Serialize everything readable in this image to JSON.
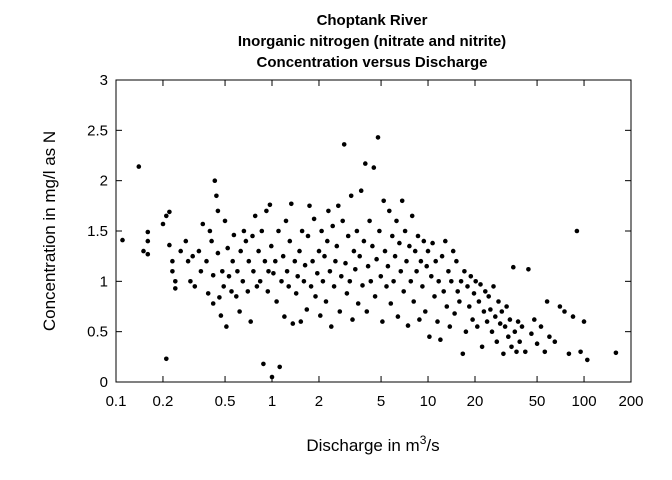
{
  "chart_data": {
    "type": "scatter",
    "title_lines": [
      "Choptank River",
      "Inorganic nitrogen (nitrate and nitrite)",
      "Concentration versus Discharge"
    ],
    "xlabel": {
      "prefix": "Discharge in m",
      "superscript": "3",
      "suffix": "/s"
    },
    "ylabel": "Concentration in mg/l as N",
    "x_scale": "log",
    "xlim": [
      0.1,
      200
    ],
    "ylim": [
      0,
      3
    ],
    "x_ticks": [
      {
        "value": 0.1,
        "label": "0.1"
      },
      {
        "value": 0.2,
        "label": "0.2"
      },
      {
        "value": 0.5,
        "label": "0.5"
      },
      {
        "value": 1,
        "label": "1"
      },
      {
        "value": 2,
        "label": "2"
      },
      {
        "value": 5,
        "label": "5"
      },
      {
        "value": 10,
        "label": "10"
      },
      {
        "value": 20,
        "label": "20"
      },
      {
        "value": 50,
        "label": "50"
      },
      {
        "value": 100,
        "label": "100"
      },
      {
        "value": 200,
        "label": "200"
      }
    ],
    "y_ticks": [
      {
        "value": 0,
        "label": "0"
      },
      {
        "value": 0.5,
        "label": "0.5"
      },
      {
        "value": 1,
        "label": "1"
      },
      {
        "value": 1.5,
        "label": "1.5"
      },
      {
        "value": 2,
        "label": "2"
      },
      {
        "value": 2.5,
        "label": "2.5"
      },
      {
        "value": 3,
        "label": "3"
      }
    ],
    "grid": false,
    "marker_color": "#000000",
    "points": [
      [
        0.11,
        1.41
      ],
      [
        0.14,
        2.14
      ],
      [
        0.15,
        1.3
      ],
      [
        0.16,
        1.27
      ],
      [
        0.16,
        1.4
      ],
      [
        0.16,
        1.49
      ],
      [
        0.2,
        1.57
      ],
      [
        0.21,
        1.65
      ],
      [
        0.21,
        0.23
      ],
      [
        0.22,
        1.36
      ],
      [
        0.22,
        1.69
      ],
      [
        0.23,
        1.2
      ],
      [
        0.23,
        1.1
      ],
      [
        0.24,
        1.0
      ],
      [
        0.24,
        0.93
      ],
      [
        0.26,
        1.3
      ],
      [
        0.28,
        1.4
      ],
      [
        0.29,
        1.2
      ],
      [
        0.3,
        1.0
      ],
      [
        0.31,
        1.25
      ],
      [
        0.32,
        0.95
      ],
      [
        0.34,
        1.3
      ],
      [
        0.35,
        1.1
      ],
      [
        0.36,
        1.57
      ],
      [
        0.38,
        1.2
      ],
      [
        0.39,
        0.88
      ],
      [
        0.4,
        1.5
      ],
      [
        0.41,
        1.4
      ],
      [
        0.42,
        0.78
      ],
      [
        0.42,
        1.06
      ],
      [
        0.43,
        2.0
      ],
      [
        0.44,
        1.85
      ],
      [
        0.45,
        1.7
      ],
      [
        0.45,
        1.28
      ],
      [
        0.46,
        0.84
      ],
      [
        0.47,
        0.66
      ],
      [
        0.48,
        1.1
      ],
      [
        0.49,
        0.95
      ],
      [
        0.5,
        1.6
      ],
      [
        0.51,
        0.55
      ],
      [
        0.52,
        1.33
      ],
      [
        0.53,
        1.05
      ],
      [
        0.55,
        0.9
      ],
      [
        0.56,
        1.2
      ],
      [
        0.57,
        1.46
      ],
      [
        0.59,
        0.85
      ],
      [
        0.6,
        1.1
      ],
      [
        0.62,
        0.7
      ],
      [
        0.63,
        1.3
      ],
      [
        0.65,
        1.0
      ],
      [
        0.66,
        1.5
      ],
      [
        0.68,
        1.4
      ],
      [
        0.7,
        0.9
      ],
      [
        0.71,
        1.2
      ],
      [
        0.73,
        0.6
      ],
      [
        0.75,
        1.45
      ],
      [
        0.76,
        1.1
      ],
      [
        0.78,
        1.65
      ],
      [
        0.8,
        0.95
      ],
      [
        0.82,
        1.3
      ],
      [
        0.84,
        1.0
      ],
      [
        0.86,
        1.5
      ],
      [
        0.88,
        0.18
      ],
      [
        0.9,
        1.2
      ],
      [
        0.92,
        1.7
      ],
      [
        0.94,
        0.9
      ],
      [
        0.95,
        1.1
      ],
      [
        0.97,
        1.76
      ],
      [
        0.99,
        1.35
      ],
      [
        1.0,
        0.05
      ],
      [
        1.02,
        1.08
      ],
      [
        1.05,
        1.2
      ],
      [
        1.07,
        0.8
      ],
      [
        1.1,
        1.5
      ],
      [
        1.12,
        0.15
      ],
      [
        1.15,
        1.0
      ],
      [
        1.18,
        1.25
      ],
      [
        1.2,
        0.65
      ],
      [
        1.23,
        1.6
      ],
      [
        1.25,
        1.1
      ],
      [
        1.28,
        0.95
      ],
      [
        1.3,
        1.4
      ],
      [
        1.33,
        1.77
      ],
      [
        1.36,
        0.58
      ],
      [
        1.4,
        1.2
      ],
      [
        1.43,
        0.88
      ],
      [
        1.46,
        1.05
      ],
      [
        1.5,
        1.3
      ],
      [
        1.53,
        0.6
      ],
      [
        1.56,
        1.5
      ],
      [
        1.6,
        1.0
      ],
      [
        1.63,
        1.16
      ],
      [
        1.67,
        0.72
      ],
      [
        1.7,
        1.45
      ],
      [
        1.74,
        1.75
      ],
      [
        1.78,
        0.95
      ],
      [
        1.82,
        1.2
      ],
      [
        1.86,
        1.62
      ],
      [
        1.9,
        0.85
      ],
      [
        1.95,
        1.08
      ],
      [
        2.0,
        1.3
      ],
      [
        2.04,
        0.66
      ],
      [
        2.08,
        1.5
      ],
      [
        2.12,
        1.0
      ],
      [
        2.17,
        1.25
      ],
      [
        2.22,
        0.8
      ],
      [
        2.26,
        1.4
      ],
      [
        2.3,
        1.7
      ],
      [
        2.35,
        1.1
      ],
      [
        2.4,
        0.55
      ],
      [
        2.45,
        1.55
      ],
      [
        2.5,
        0.95
      ],
      [
        2.55,
        1.2
      ],
      [
        2.6,
        1.35
      ],
      [
        2.66,
        1.75
      ],
      [
        2.72,
        0.7
      ],
      [
        2.78,
        1.05
      ],
      [
        2.84,
        1.6
      ],
      [
        2.9,
        2.36
      ],
      [
        2.96,
        1.18
      ],
      [
        3.02,
        0.88
      ],
      [
        3.08,
        1.45
      ],
      [
        3.15,
        1.0
      ],
      [
        3.22,
        1.85
      ],
      [
        3.28,
        0.62
      ],
      [
        3.35,
        1.3
      ],
      [
        3.42,
        1.12
      ],
      [
        3.5,
        1.5
      ],
      [
        3.57,
        0.78
      ],
      [
        3.65,
        1.25
      ],
      [
        3.73,
        1.9
      ],
      [
        3.8,
        0.96
      ],
      [
        3.88,
        1.4
      ],
      [
        3.96,
        2.17
      ],
      [
        4.05,
        0.7
      ],
      [
        4.13,
        1.15
      ],
      [
        4.22,
        1.6
      ],
      [
        4.3,
        1.0
      ],
      [
        4.4,
        1.35
      ],
      [
        4.49,
        2.13
      ],
      [
        4.58,
        0.85
      ],
      [
        4.68,
        1.22
      ],
      [
        4.78,
        2.43
      ],
      [
        4.88,
        1.5
      ],
      [
        4.98,
        1.05
      ],
      [
        5.1,
        0.6
      ],
      [
        5.2,
        1.8
      ],
      [
        5.3,
        1.3
      ],
      [
        5.42,
        0.95
      ],
      [
        5.53,
        1.15
      ],
      [
        5.65,
        1.7
      ],
      [
        5.77,
        0.78
      ],
      [
        5.9,
        1.45
      ],
      [
        6.02,
        1.0
      ],
      [
        6.15,
        1.25
      ],
      [
        6.28,
        1.6
      ],
      [
        6.41,
        0.65
      ],
      [
        6.55,
        1.38
      ],
      [
        6.69,
        1.1
      ],
      [
        6.83,
        1.8
      ],
      [
        6.98,
        0.9
      ],
      [
        7.13,
        1.5
      ],
      [
        7.28,
        1.2
      ],
      [
        7.44,
        0.56
      ],
      [
        7.6,
        1.35
      ],
      [
        7.76,
        1.0
      ],
      [
        7.92,
        1.65
      ],
      [
        8.09,
        0.8
      ],
      [
        8.27,
        1.3
      ],
      [
        8.45,
        1.1
      ],
      [
        8.63,
        1.45
      ],
      [
        8.81,
        0.62
      ],
      [
        9.0,
        1.2
      ],
      [
        9.2,
        0.95
      ],
      [
        9.4,
        1.4
      ],
      [
        9.6,
        0.7
      ],
      [
        9.8,
        1.15
      ],
      [
        10.0,
        1.3
      ],
      [
        10.2,
        0.45
      ],
      [
        10.5,
        1.05
      ],
      [
        10.7,
        1.38
      ],
      [
        11.0,
        0.85
      ],
      [
        11.2,
        1.2
      ],
      [
        11.5,
        0.6
      ],
      [
        11.7,
        1.0
      ],
      [
        12.0,
        0.42
      ],
      [
        12.3,
        1.25
      ],
      [
        12.6,
        0.9
      ],
      [
        12.9,
        1.4
      ],
      [
        13.2,
        0.75
      ],
      [
        13.5,
        1.1
      ],
      [
        13.8,
        0.55
      ],
      [
        14.1,
        1.0
      ],
      [
        14.5,
        1.3
      ],
      [
        14.8,
        0.68
      ],
      [
        15.2,
        1.2
      ],
      [
        15.5,
        0.9
      ],
      [
        15.9,
        0.8
      ],
      [
        16.3,
        1.0
      ],
      [
        16.7,
        0.28
      ],
      [
        17.1,
        1.1
      ],
      [
        17.5,
        0.5
      ],
      [
        17.9,
        0.95
      ],
      [
        18.4,
        0.75
      ],
      [
        18.8,
        1.05
      ],
      [
        19.3,
        0.62
      ],
      [
        19.7,
        0.88
      ],
      [
        20.2,
        1.0
      ],
      [
        20.7,
        0.55
      ],
      [
        21.2,
        0.8
      ],
      [
        21.7,
        0.97
      ],
      [
        22.2,
        0.35
      ],
      [
        22.8,
        0.7
      ],
      [
        23.3,
        0.9
      ],
      [
        23.9,
        0.6
      ],
      [
        24.5,
        0.85
      ],
      [
        25.1,
        0.72
      ],
      [
        25.7,
        0.5
      ],
      [
        26.3,
        0.95
      ],
      [
        27.0,
        0.65
      ],
      [
        27.6,
        0.4
      ],
      [
        28.3,
        0.8
      ],
      [
        29.0,
        0.58
      ],
      [
        29.7,
        0.7
      ],
      [
        30.4,
        0.28
      ],
      [
        31.2,
        0.55
      ],
      [
        31.9,
        0.75
      ],
      [
        32.7,
        0.45
      ],
      [
        33.5,
        0.62
      ],
      [
        34.3,
        0.35
      ],
      [
        35.2,
        1.14
      ],
      [
        36.0,
        0.5
      ],
      [
        36.9,
        0.3
      ],
      [
        37.8,
        0.6
      ],
      [
        38.7,
        0.4
      ],
      [
        40.0,
        0.55
      ],
      [
        42.0,
        0.3
      ],
      [
        44.0,
        1.12
      ],
      [
        46.0,
        0.48
      ],
      [
        48.0,
        0.62
      ],
      [
        50.0,
        0.38
      ],
      [
        53.0,
        0.55
      ],
      [
        56.0,
        0.3
      ],
      [
        58.0,
        0.8
      ],
      [
        60.0,
        0.45
      ],
      [
        65.0,
        0.4
      ],
      [
        70.0,
        0.75
      ],
      [
        75.0,
        0.7
      ],
      [
        80.0,
        0.28
      ],
      [
        85.0,
        0.65
      ],
      [
        90.0,
        1.5
      ],
      [
        95.0,
        0.3
      ],
      [
        100.0,
        0.6
      ],
      [
        105.0,
        0.22
      ],
      [
        160.0,
        0.29
      ]
    ]
  }
}
